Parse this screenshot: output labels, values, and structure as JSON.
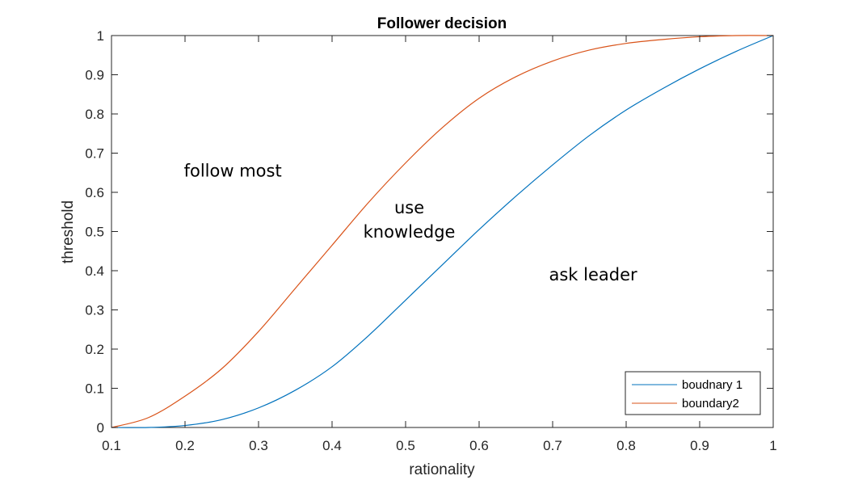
{
  "chart_data": {
    "type": "line",
    "title": "Follower decision",
    "xlabel": "rationality",
    "ylabel": "threshold",
    "xlim": [
      0.1,
      1
    ],
    "ylim": [
      0,
      1
    ],
    "xticks": [
      "0.1",
      "0.2",
      "0.3",
      "0.4",
      "0.5",
      "0.6",
      "0.7",
      "0.8",
      "0.9",
      "1"
    ],
    "yticks": [
      "0",
      "0.1",
      "0.2",
      "0.3",
      "0.4",
      "0.5",
      "0.6",
      "0.7",
      "0.8",
      "0.9",
      "1"
    ],
    "grid": false,
    "legend_position": "bottom-right",
    "series": [
      {
        "name": "boudnary 1",
        "color": "#0072BD",
        "x": [
          0.1,
          0.15,
          0.2,
          0.25,
          0.3,
          0.35,
          0.4,
          0.45,
          0.5,
          0.55,
          0.6,
          0.65,
          0.7,
          0.75,
          0.8,
          0.85,
          0.9,
          0.95,
          1.0
        ],
        "y": [
          0.0,
          0.0,
          0.005,
          0.02,
          0.05,
          0.095,
          0.155,
          0.235,
          0.325,
          0.415,
          0.505,
          0.59,
          0.67,
          0.745,
          0.81,
          0.865,
          0.915,
          0.96,
          1.0
        ]
      },
      {
        "name": "boundary2",
        "color": "#D95319",
        "x": [
          0.1,
          0.15,
          0.2,
          0.25,
          0.3,
          0.35,
          0.4,
          0.45,
          0.5,
          0.55,
          0.6,
          0.65,
          0.7,
          0.75,
          0.8,
          0.85,
          0.9,
          0.95,
          1.0
        ],
        "y": [
          0.0,
          0.025,
          0.08,
          0.15,
          0.245,
          0.355,
          0.465,
          0.575,
          0.675,
          0.765,
          0.84,
          0.895,
          0.935,
          0.963,
          0.98,
          0.99,
          0.997,
          1.0,
          1.0
        ]
      }
    ],
    "annotations": [
      {
        "lines": [
          "follow most"
        ],
        "x": 0.265,
        "y": 0.655
      },
      {
        "lines": [
          "use",
          "knowledge"
        ],
        "x": 0.505,
        "y": 0.53
      },
      {
        "lines": [
          "ask leader"
        ],
        "x": 0.755,
        "y": 0.39
      }
    ]
  }
}
